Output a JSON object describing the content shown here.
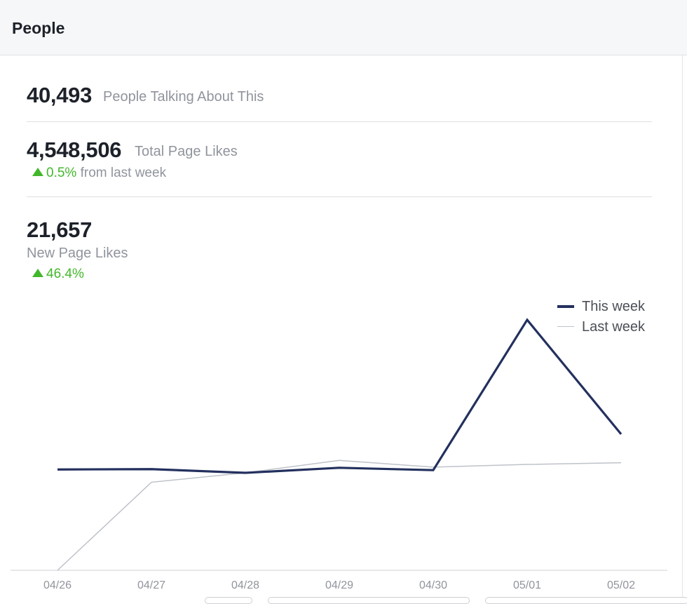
{
  "header": {
    "title": "People"
  },
  "stats": {
    "talking": {
      "value": "40,493",
      "label": "People Talking About This"
    },
    "total_likes": {
      "value": "4,548,506",
      "label": "Total Page Likes",
      "delta": "0.5%",
      "delta_suffix": " from last week"
    },
    "new_likes": {
      "value": "21,657",
      "label": "New Page Likes",
      "delta": "46.4%"
    }
  },
  "colors": {
    "this_week": "#23305e",
    "last_week": "#bec2c9",
    "positive": "#42b72a"
  },
  "chart_data": {
    "type": "line",
    "categories": [
      "04/26",
      "04/27",
      "04/28",
      "04/29",
      "04/30",
      "05/01",
      "05/02"
    ],
    "series": [
      {
        "name": "This week",
        "values": [
          3000,
          3010,
          2900,
          3050,
          2980,
          7450,
          4050
        ]
      },
      {
        "name": "Last week",
        "values": [
          0,
          2620,
          2900,
          3270,
          3070,
          3150,
          3200
        ]
      }
    ],
    "ylim": [
      0,
      8200
    ],
    "grid": false,
    "legend": "top-right"
  }
}
